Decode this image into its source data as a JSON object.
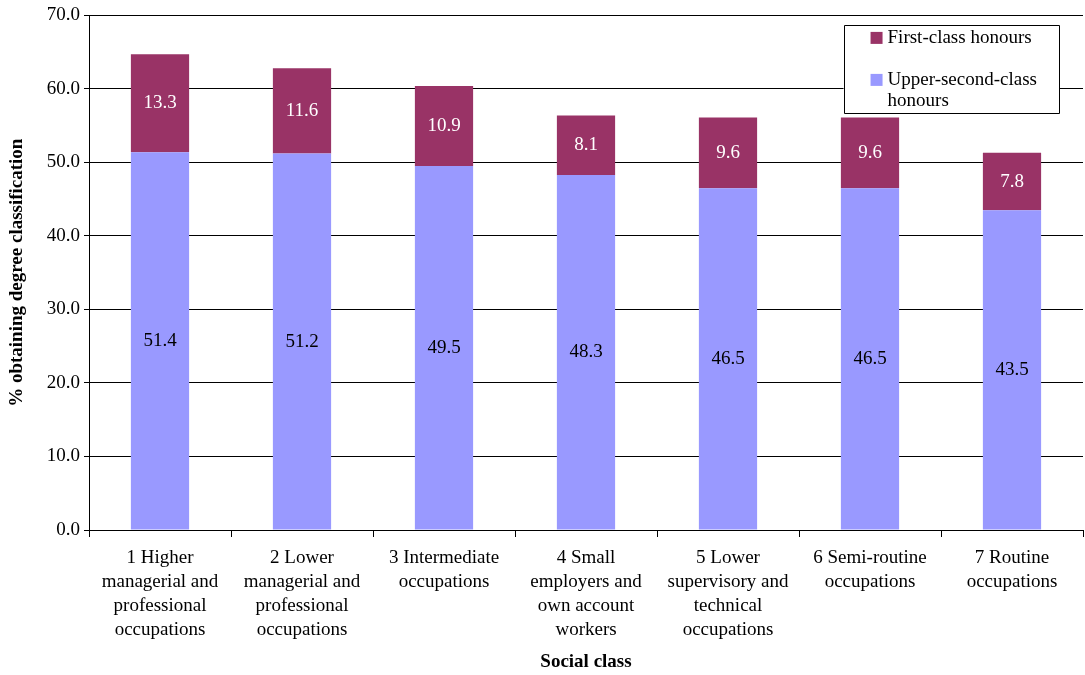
{
  "chart_data": {
    "type": "bar",
    "stacked": true,
    "categories": [
      "1 Higher managerial and professional occupations",
      "2 Lower managerial and professional occupations",
      "3 Intermediate occupations",
      "4 Small employers and own account workers",
      "5 Lower supervisory and technical occupations",
      "6 Semi-routine occupations",
      "7 Routine occupations"
    ],
    "series": [
      {
        "name": "Upper-second-class honours",
        "color": "#9999ff",
        "values": [
          51.4,
          51.2,
          49.5,
          48.3,
          46.5,
          46.5,
          43.5
        ]
      },
      {
        "name": "First-class honours",
        "color": "#993366",
        "values": [
          13.3,
          11.6,
          10.9,
          8.1,
          9.6,
          9.6,
          7.8
        ]
      }
    ],
    "xlabel": "Social class",
    "ylabel": "% obtaining degree classification",
    "ylim": [
      0,
      70
    ],
    "yticks": [
      {
        "value": 0,
        "label": "0.0"
      },
      {
        "value": 10,
        "label": "10.0"
      },
      {
        "value": 20,
        "label": "20.0"
      },
      {
        "value": 30,
        "label": "30.0"
      },
      {
        "value": 40,
        "label": "40.0"
      },
      {
        "value": 50,
        "label": "50.0"
      },
      {
        "value": 60,
        "label": "60.0"
      },
      {
        "value": 70,
        "label": "70.0"
      }
    ],
    "grid": "y",
    "legend": "top right",
    "data_labels": true
  }
}
